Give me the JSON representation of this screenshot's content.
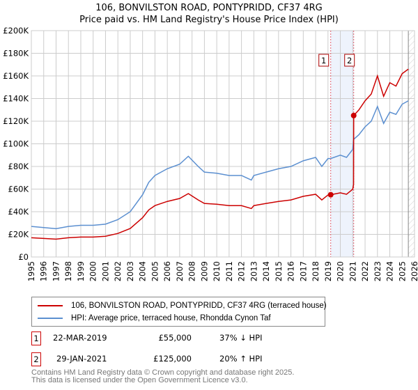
{
  "title_line1": "106, BONVILSTON ROAD, PONTYPRIDD, CF37 4RG",
  "title_line2": "Price paid vs. HM Land Registry's House Price Index (HPI)",
  "chart_data": {
    "type": "line",
    "title": "106, BONVILSTON ROAD, PONTYPRIDD, CF37 4RG — Price paid vs. HM Land Registry's House Price Index (HPI)",
    "xlim": [
      1995,
      2026
    ],
    "ylim": [
      0,
      200000
    ],
    "grid": true,
    "x_ticks": [
      "1995",
      "1996",
      "1997",
      "1998",
      "1999",
      "2000",
      "2001",
      "2002",
      "2003",
      "2004",
      "2005",
      "2006",
      "2007",
      "2008",
      "2009",
      "2010",
      "2011",
      "2012",
      "2013",
      "2014",
      "2015",
      "2016",
      "2017",
      "2018",
      "2019",
      "2020",
      "2021",
      "2022",
      "2023",
      "2024",
      "2025",
      "2026"
    ],
    "y_ticks": [
      {
        "v": 0,
        "label": "£0"
      },
      {
        "v": 20000,
        "label": "£20K"
      },
      {
        "v": 40000,
        "label": "£40K"
      },
      {
        "v": 60000,
        "label": "£60K"
      },
      {
        "v": 80000,
        "label": "£80K"
      },
      {
        "v": 100000,
        "label": "£100K"
      },
      {
        "v": 120000,
        "label": "£120K"
      },
      {
        "v": 140000,
        "label": "£140K"
      },
      {
        "v": 160000,
        "label": "£160K"
      },
      {
        "v": 180000,
        "label": "£180K"
      },
      {
        "v": 200000,
        "label": "£200K"
      }
    ],
    "series": [
      {
        "name": "HPI: Average price, terraced house, Rhondda Cynon Taf",
        "color": "#5b8fd0",
        "x": [
          1995,
          1996,
          1997,
          1998,
          1999,
          2000,
          2001,
          2002,
          2003,
          2004,
          2004.5,
          2005,
          2006,
          2007,
          2007.7,
          2008.5,
          2009,
          2010,
          2011,
          2012,
          2012.8,
          2013,
          2014,
          2015,
          2016,
          2017,
          2018,
          2018.5,
          2019,
          2019.22,
          2020,
          2020.5,
          2021,
          2021.08,
          2021.5,
          2022,
          2022.5,
          2023,
          2023.5,
          2024,
          2024.5,
          2025,
          2025.5
        ],
        "y": [
          27000,
          26000,
          25000,
          27000,
          28000,
          28000,
          29000,
          33000,
          40000,
          55000,
          66000,
          72000,
          78000,
          82000,
          89000,
          80000,
          75000,
          74000,
          72000,
          72000,
          68000,
          72000,
          75000,
          78000,
          80000,
          85000,
          88000,
          80000,
          87000,
          87000,
          90000,
          88000,
          95000,
          104000,
          108000,
          115000,
          120000,
          133000,
          118000,
          128000,
          126000,
          135000,
          138000
        ]
      },
      {
        "name": "106, BONVILSTON ROAD, PONTYPRIDD, CF37 4RG (terraced house)",
        "color": "#cc0000",
        "x": [
          1995,
          1996,
          1997,
          1998,
          1999,
          2000,
          2001,
          2002,
          2003,
          2004,
          2004.5,
          2005,
          2006,
          2007,
          2007.7,
          2008.5,
          2009,
          2010,
          2011,
          2012,
          2012.8,
          2013,
          2014,
          2015,
          2016,
          2017,
          2018,
          2018.5,
          2019,
          2019.22,
          2020,
          2020.5,
          2021,
          2021.07,
          2021.08,
          2021.5,
          2022,
          2022.5,
          2023,
          2023.5,
          2024,
          2024.5,
          2025,
          2025.5
        ],
        "y": [
          17000,
          16400,
          15800,
          17000,
          17600,
          17600,
          18300,
          20800,
          25200,
          34700,
          41600,
          45400,
          49100,
          51700,
          56000,
          50400,
          47300,
          46600,
          45400,
          45400,
          42800,
          45400,
          47300,
          49100,
          50400,
          53600,
          55400,
          50400,
          54800,
          55000,
          56700,
          55400,
          59900,
          64000,
          125000,
          130000,
          138000,
          144000,
          160000,
          142000,
          154000,
          151000,
          162000,
          166000
        ]
      }
    ],
    "sales": [
      {
        "label": "1",
        "x": 2019.22,
        "y": 55000
      },
      {
        "label": "2",
        "x": 2021.08,
        "y": 125000
      }
    ],
    "forecast_hatch_from": 2025.5
  },
  "legend": [
    "106, BONVILSTON ROAD, PONTYPRIDD, CF37 4RG (terraced house)",
    "HPI: Average price, terraced house, Rhondda Cynon Taf"
  ],
  "transactions": [
    {
      "num": "1",
      "date": "22-MAR-2019",
      "price": "£55,000",
      "hpi": "37% ↓ HPI"
    },
    {
      "num": "2",
      "date": "29-JAN-2021",
      "price": "£125,000",
      "hpi": "20% ↑ HPI"
    }
  ],
  "footer": [
    "Contains HM Land Registry data © Crown copyright and database right 2025.",
    "This data is licensed under the Open Government Licence v3.0."
  ]
}
